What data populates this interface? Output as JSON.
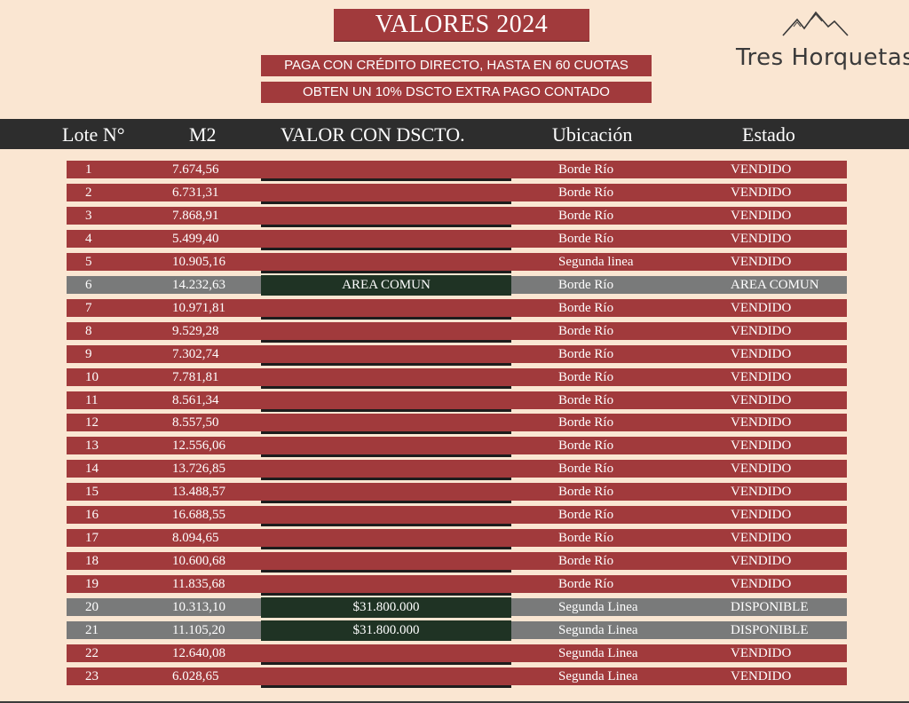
{
  "title": "VALORES 2024",
  "promo": {
    "line1": "PAGA CON CRÉDITO  DIRECTO, HASTA EN 60 CUOTAS",
    "line2": "OBTEN UN 10% DSCTO EXTRA PAGO CONTADO"
  },
  "logo": {
    "text": "Tres Horquetas",
    "icon": "mountain-icon"
  },
  "colors": {
    "maroon": "#a13a3c",
    "gray": "#797a7a",
    "dark_green": "#1f3324",
    "header": "#2d2d2d",
    "background": "#fae6d2"
  },
  "table": {
    "headers": {
      "lote": "Lote N°",
      "m2": "M2",
      "valor": "VALOR CON DSCTO.",
      "ubicacion": "Ubicación",
      "estado": "Estado"
    },
    "rows": [
      {
        "lote": "1",
        "m2": "7.674,56",
        "valor": "",
        "ubicacion": "Borde Río",
        "estado": "VENDIDO"
      },
      {
        "lote": "2",
        "m2": "6.731,31",
        "valor": "",
        "ubicacion": "Borde Río",
        "estado": "VENDIDO"
      },
      {
        "lote": "3",
        "m2": "7.868,91",
        "valor": "",
        "ubicacion": "Borde Río",
        "estado": "VENDIDO"
      },
      {
        "lote": "4",
        "m2": "5.499,40",
        "valor": "",
        "ubicacion": "Borde Río",
        "estado": "VENDIDO"
      },
      {
        "lote": "5",
        "m2": "10.905,16",
        "valor": "",
        "ubicacion": "Segunda linea",
        "estado": "VENDIDO"
      },
      {
        "lote": "6",
        "m2": "14.232,63",
        "valor": "AREA COMUN",
        "ubicacion": "Borde Río",
        "estado": "AREA COMUN"
      },
      {
        "lote": "7",
        "m2": "10.971,81",
        "valor": "",
        "ubicacion": "Borde Río",
        "estado": "VENDIDO"
      },
      {
        "lote": "8",
        "m2": "9.529,28",
        "valor": "",
        "ubicacion": "Borde Río",
        "estado": "VENDIDO"
      },
      {
        "lote": "9",
        "m2": "7.302,74",
        "valor": "",
        "ubicacion": "Borde Río",
        "estado": "VENDIDO"
      },
      {
        "lote": "10",
        "m2": "7.781,81",
        "valor": "",
        "ubicacion": "Borde Río",
        "estado": "VENDIDO"
      },
      {
        "lote": "11",
        "m2": "8.561,34",
        "valor": "",
        "ubicacion": "Borde Río",
        "estado": "VENDIDO"
      },
      {
        "lote": "12",
        "m2": "8.557,50",
        "valor": "",
        "ubicacion": "Borde Río",
        "estado": "VENDIDO"
      },
      {
        "lote": "13",
        "m2": "12.556,06",
        "valor": "",
        "ubicacion": "Borde Río",
        "estado": "VENDIDO"
      },
      {
        "lote": "14",
        "m2": "13.726,85",
        "valor": "",
        "ubicacion": "Borde Río",
        "estado": "VENDIDO"
      },
      {
        "lote": "15",
        "m2": "13.488,57",
        "valor": "",
        "ubicacion": "Borde Río",
        "estado": "VENDIDO"
      },
      {
        "lote": "16",
        "m2": "16.688,55",
        "valor": "",
        "ubicacion": "Borde Río",
        "estado": "VENDIDO"
      },
      {
        "lote": "17",
        "m2": "8.094,65",
        "valor": "",
        "ubicacion": "Borde Río",
        "estado": "VENDIDO"
      },
      {
        "lote": "18",
        "m2": "10.600,68",
        "valor": "",
        "ubicacion": "Borde Río",
        "estado": "VENDIDO"
      },
      {
        "lote": "19",
        "m2": "11.835,68",
        "valor": "",
        "ubicacion": "Borde Río",
        "estado": "VENDIDO"
      },
      {
        "lote": "20",
        "m2": "10.313,10",
        "valor": "$31.800.000",
        "ubicacion": "Segunda Linea",
        "estado": "DISPONIBLE"
      },
      {
        "lote": "21",
        "m2": "11.105,20",
        "valor": "$31.800.000",
        "ubicacion": "Segunda Linea",
        "estado": "DISPONIBLE"
      },
      {
        "lote": "22",
        "m2": "12.640,08",
        "valor": "",
        "ubicacion": "Segunda Linea",
        "estado": "VENDIDO"
      },
      {
        "lote": "23",
        "m2": "6.028,65",
        "valor": "",
        "ubicacion": "Segunda Linea",
        "estado": "VENDIDO"
      }
    ]
  }
}
